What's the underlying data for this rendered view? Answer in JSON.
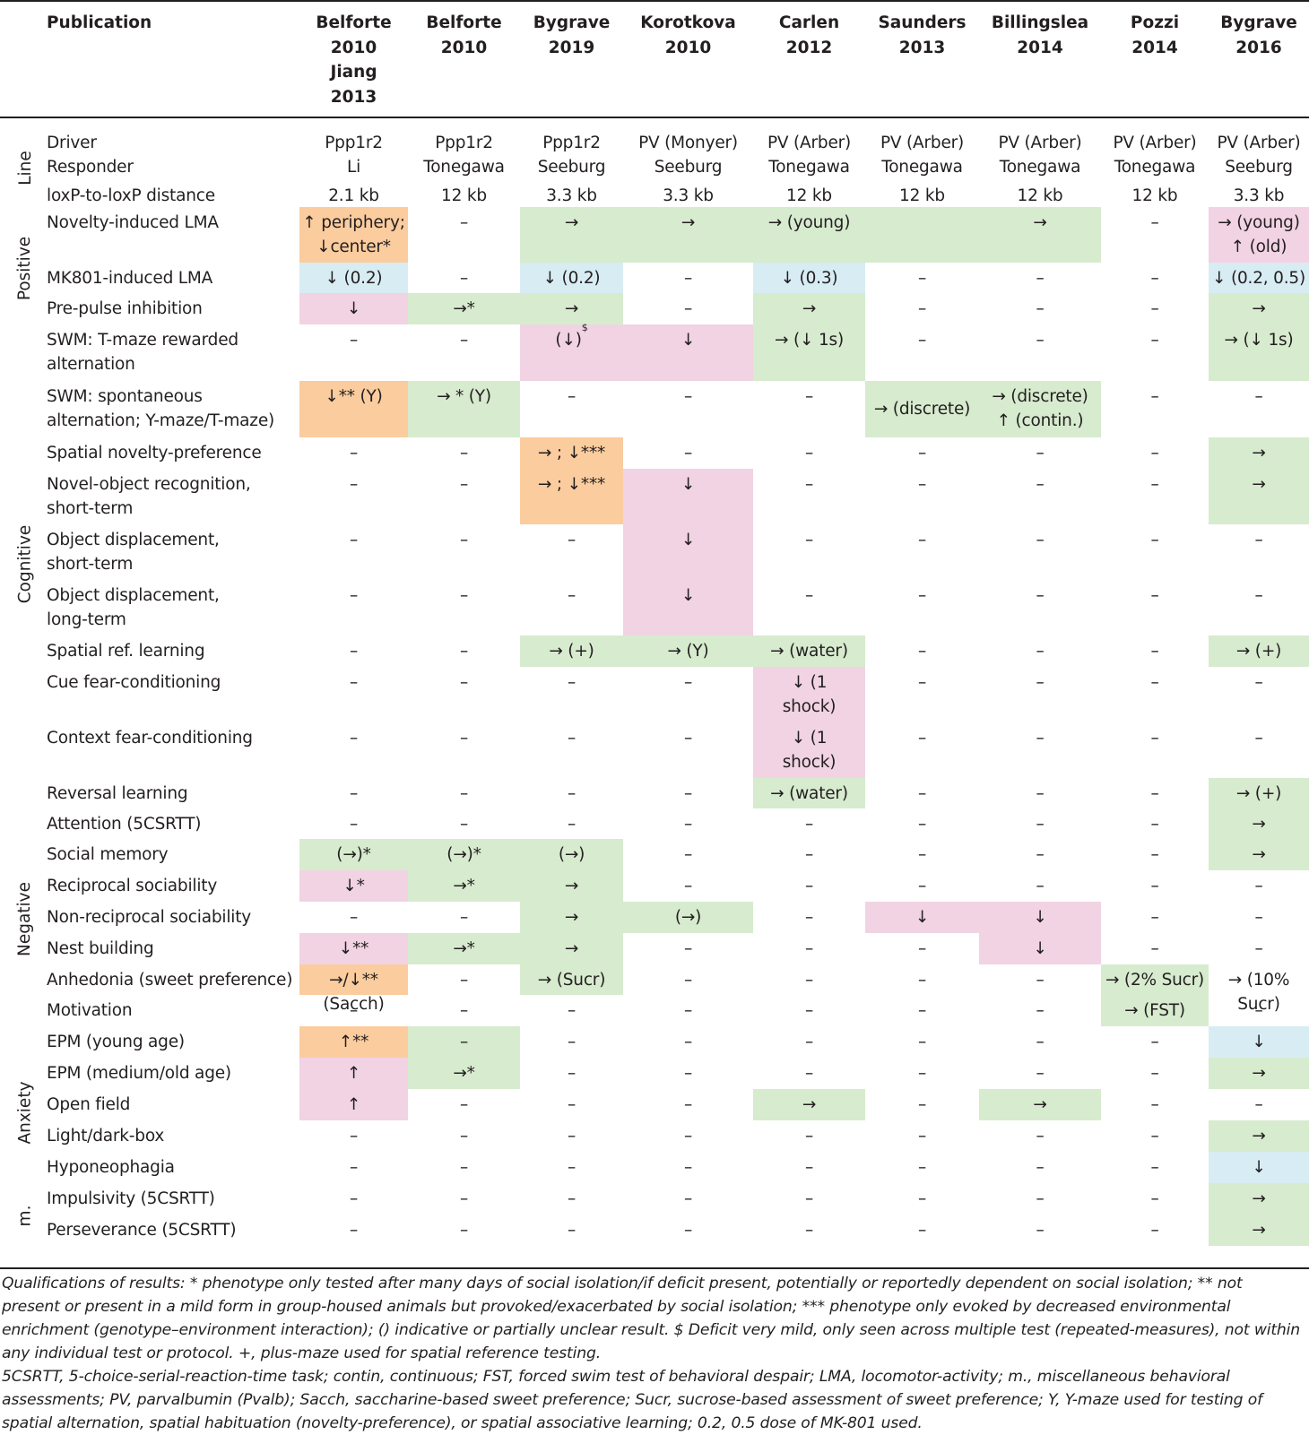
{
  "colors": {
    "no_change": "#d7ebcf",
    "decrease": "#f1d3e3",
    "increase_or_mixed": "#fbcc9e",
    "reduced_by_drug": "#d8ecf3",
    "text": "#231f20"
  },
  "header": {
    "publication_label": "Publication",
    "columns": [
      "Belforte\n2010\nJiang\n2013",
      "Belforte\n2010",
      "Bygrave\n2019",
      "Korotkova\n2010",
      "Carlen\n2012",
      "Saunders\n2013",
      "Billingslea\n2014",
      "Pozzi\n2014",
      "Bygrave\n2016"
    ]
  },
  "groups": [
    "Line",
    "Positive",
    "Cognitive",
    "Negative",
    "Anxiety",
    "m."
  ],
  "rows": [
    {
      "label": "Driver\nResponder",
      "cells": [
        "Ppp1r2\nLi",
        "Ppp1r2\nTonegawa",
        "Ppp1r2\nSeeburg",
        "PV (Monyer)\nSeeburg",
        "PV (Arber)\nTonegawa",
        "PV (Arber)\nTonegawa",
        "PV (Arber)\nTonegawa",
        "PV (Arber)\nTonegawa",
        "PV (Arber)\nSeeburg"
      ]
    },
    {
      "label": "loxP-to-loxP distance",
      "cells": [
        "2.1 kb",
        "12 kb",
        "3.3 kb",
        "3.3 kb",
        "12 kb",
        "12 kb",
        "12 kb",
        "12 kb",
        "3.3 kb"
      ]
    },
    {
      "label": "Novelty-induced LMA",
      "cells": [
        "↑ periphery;\n↓center*",
        "–",
        "→",
        "→",
        "→ (young)",
        "",
        "→",
        "–",
        "→ (young)\n↑ (old)"
      ]
    },
    {
      "label": "MK801-induced LMA",
      "cells": [
        "↓ (0.2)",
        "–",
        "↓ (0.2)",
        "–",
        "↓ (0.3)",
        "–",
        "–",
        "–",
        "↓ (0.2, 0.5)"
      ]
    },
    {
      "label": "Pre-pulse inhibition",
      "cells": [
        "↓",
        "→*",
        "→",
        "–",
        "→",
        "–",
        "–",
        "–",
        "→"
      ]
    },
    {
      "label": "SWM: T-maze rewarded\nalternation",
      "cells": [
        "–",
        "–",
        "(↓) $",
        "↓",
        "→ (↓ 1s)",
        "–",
        "–",
        "–",
        "→ (↓ 1s)"
      ]
    },
    {
      "label": "SWM: spontaneous\nalternation; Y-maze/T-maze)",
      "cells": [
        "↓** (Y)",
        "→ * (Y)",
        "–",
        "–",
        "–",
        "→ (discrete)",
        "→ (discrete)\n↑ (contin.)",
        "–",
        "–"
      ]
    },
    {
      "label": "Spatial novelty-preference",
      "cells": [
        "–",
        "–",
        "→ ; ↓***",
        "–",
        "–",
        "–",
        "–",
        "–",
        "→"
      ]
    },
    {
      "label": "Novel-object recognition,\nshort-term",
      "cells": [
        "–",
        "–",
        "→ ; ↓***",
        "↓",
        "–",
        "–",
        "–",
        "–",
        "→"
      ]
    },
    {
      "label": "Object displacement,\nshort-term",
      "cells": [
        "–",
        "–",
        "–",
        "↓",
        "–",
        "–",
        "–",
        "–",
        "–"
      ]
    },
    {
      "label": "Object displacement,\nlong-term",
      "cells": [
        "–",
        "–",
        "–",
        "↓",
        "–",
        "–",
        "–",
        "–",
        "–"
      ]
    },
    {
      "label": "Spatial ref. learning",
      "cells": [
        "–",
        "–",
        "→ (+)",
        "→ (Y)",
        "→ (water)",
        "–",
        "–",
        "–",
        "→ (+)"
      ]
    },
    {
      "label": "Cue fear-conditioning",
      "cells": [
        "–",
        "–",
        "–",
        "–",
        "↓ (1\nshock)",
        "–",
        "–",
        "–",
        "–"
      ]
    },
    {
      "label": "Context fear-conditioning",
      "cells": [
        "–",
        "–",
        "–",
        "–",
        "↓ (1\nshock)",
        "–",
        "–",
        "–",
        "–"
      ]
    },
    {
      "label": "Reversal learning",
      "cells": [
        "–",
        "–",
        "–",
        "–",
        "→ (water)",
        "–",
        "–",
        "–",
        "→ (+)"
      ]
    },
    {
      "label": "Attention (5CSRTT)",
      "cells": [
        "–",
        "–",
        "–",
        "–",
        "–",
        "–",
        "–",
        "–",
        "→"
      ]
    },
    {
      "label": "Social memory",
      "cells": [
        "(→)*",
        "(→)*",
        "(→)",
        "–",
        "–",
        "–",
        "–",
        "–",
        "→"
      ]
    },
    {
      "label": "Reciprocal sociability",
      "cells": [
        "↓*",
        "→*",
        "→",
        "–",
        "–",
        "–",
        "–",
        "–",
        "–"
      ]
    },
    {
      "label": "Non-reciprocal sociability",
      "cells": [
        "–",
        "–",
        "→",
        "(→)",
        "–",
        "↓",
        "↓",
        "–",
        "–"
      ]
    },
    {
      "label": "Nest building",
      "cells": [
        "↓**",
        "→*",
        "→",
        "–",
        "–",
        "–",
        "↓",
        "–",
        "–"
      ]
    },
    {
      "label": "Anhedonia (sweet preference)",
      "cells": [
        "→/↓** (Sacch)",
        "–",
        "→ (Sucr)",
        "–",
        "–",
        "–",
        "–",
        "→ (2% Sucr)",
        "→ (10% Sucr)"
      ]
    },
    {
      "label": "Motivation",
      "cells": [
        "–",
        "–",
        "–",
        "–",
        "–",
        "–",
        "–",
        "→ (FST)",
        "–"
      ]
    },
    {
      "label": "EPM (young age)",
      "cells": [
        "↑**",
        "–",
        "–",
        "–",
        "–",
        "–",
        "–",
        "–",
        "↓"
      ]
    },
    {
      "label": "EPM (medium/old age)",
      "cells": [
        "↑",
        "→*",
        "–",
        "–",
        "–",
        "–",
        "–",
        "–",
        "→"
      ]
    },
    {
      "label": "Open field",
      "cells": [
        "↑",
        "–",
        "–",
        "–",
        "→",
        "–",
        "→",
        "–",
        "–"
      ]
    },
    {
      "label": "Light/dark-box",
      "cells": [
        "–",
        "–",
        "–",
        "–",
        "–",
        "–",
        "–",
        "–",
        "→"
      ]
    },
    {
      "label": "Hyponeophagia",
      "cells": [
        "–",
        "–",
        "–",
        "–",
        "–",
        "–",
        "–",
        "–",
        "↓"
      ]
    },
    {
      "label": "Impulsivity (5CSRTT)",
      "cells": [
        "–",
        "–",
        "–",
        "–",
        "–",
        "–",
        "–",
        "–",
        "→"
      ]
    },
    {
      "label": "Perseverance (5CSRTT)",
      "cells": [
        "–",
        "–",
        "–",
        "–",
        "–",
        "–",
        "–",
        "–",
        "→"
      ]
    }
  ],
  "footnotes": [
    "Qualifications of results: * phenotype only tested after many days of social isolation/if deficit present, potentially or reportedly dependent on social isolation; ** not present or present in a mild form in group-housed animals but provoked/exacerbated by social isolation; *** phenotype only evoked by decreased environmental enrichment (genotype–environment interaction); () indicative or partially unclear result. $ Deficit very mild, only seen across multiple test (repeated-measures), not within any individual test or protocol. +, plus-maze used for spatial reference testing.",
    "5CSRTT, 5-choice-serial-reaction-time task; contin, continuous;  FST, forced swim test of behavioral despair;  LMA, locomotor-activity; m., miscellaneous behavioral assessments; PV, parvalbumin (Pvalb); Sacch, saccharine-based sweet preference; Sucr, sucrose-based assessment of sweet preference; Y, Y-maze used for testing of spatial alternation, spatial habituation (novelty-preference), or spatial associative learning; 0.2, 0.5 dose of MK-801 used."
  ]
}
